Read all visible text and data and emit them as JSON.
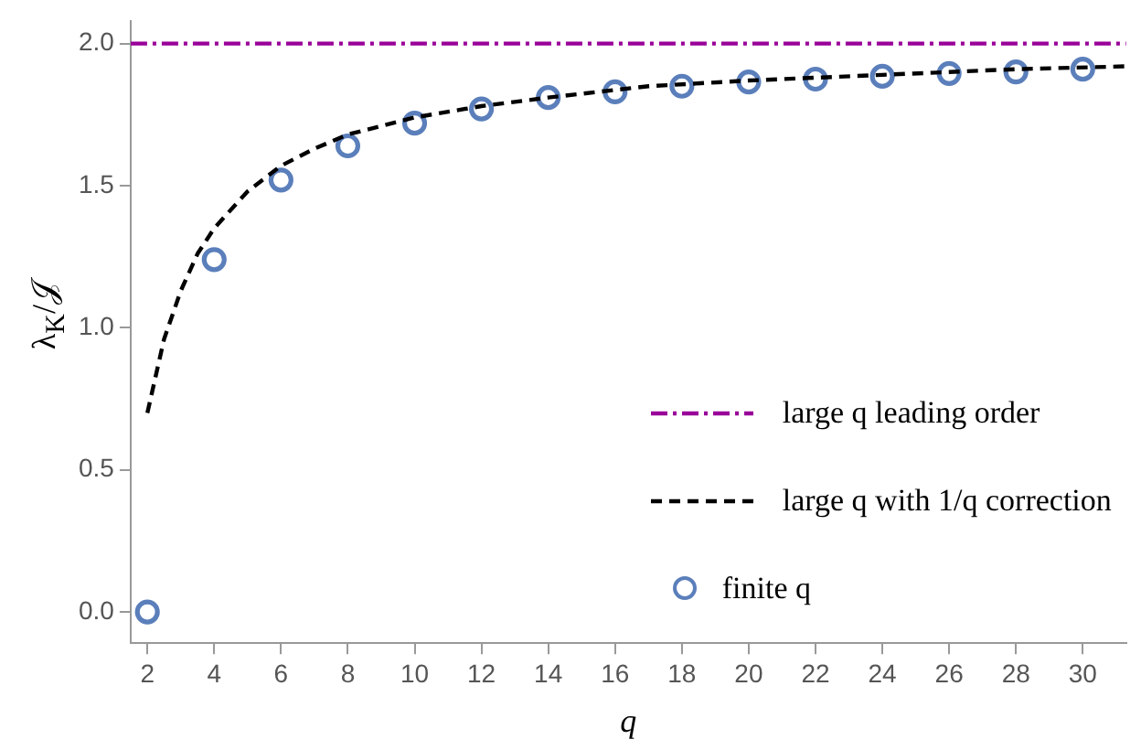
{
  "chart_data": {
    "type": "scatter",
    "xlabel": "q",
    "ylabel": "λ$_{K}$/𝒥",
    "xlim": [
      1.5,
      31.3
    ],
    "ylim": [
      -0.11,
      2.08
    ],
    "xticks": [
      2,
      4,
      6,
      8,
      10,
      12,
      14,
      16,
      18,
      20,
      22,
      24,
      26,
      28,
      30
    ],
    "yticks": [
      {
        "value": 0,
        "label": "0.0"
      },
      0.5,
      {
        "value": 1,
        "label": "1.0"
      },
      1.5,
      {
        "value": 2,
        "label": "2.0"
      }
    ],
    "grid": false,
    "legend": "bottom right",
    "series": [
      {
        "name": "large q leading order",
        "type": "line",
        "color": "#990099",
        "line_style": "dashdot",
        "marker": "none",
        "x": [
          1.5,
          31.3
        ],
        "values": [
          2,
          2
        ]
      },
      {
        "name": "large q with 1/q correction",
        "type": "line",
        "color": "#000000",
        "line_style": "dashed",
        "marker": "none",
        "x": [
          2,
          2.5,
          3,
          3.5,
          4,
          5,
          6,
          7,
          8,
          10,
          12,
          14,
          17,
          20,
          24,
          28,
          31.3
        ],
        "values": [
          0.7,
          0.96,
          1.13,
          1.26,
          1.35,
          1.48,
          1.57,
          1.63,
          1.68,
          1.74,
          1.78,
          1.81,
          1.85,
          1.87,
          1.89,
          1.91,
          1.92
        ]
      },
      {
        "name": "finite q",
        "color": "#5b7fbb",
        "marker": "circle",
        "x": [
          2,
          4,
          6,
          8,
          10,
          12,
          14,
          16,
          18,
          20,
          22,
          24,
          26,
          28,
          30
        ],
        "values": [
          0,
          1.24,
          1.52,
          1.64,
          1.72,
          1.77,
          1.81,
          1.83,
          1.85,
          1.865,
          1.875,
          1.885,
          1.895,
          1.9,
          1.91
        ]
      }
    ]
  }
}
